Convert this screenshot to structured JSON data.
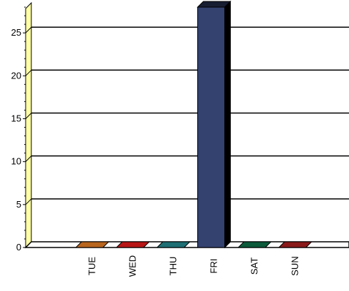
{
  "chart_data": {
    "type": "bar",
    "style": "3d",
    "title": "",
    "xlabel": "",
    "ylabel": "",
    "categories": [
      "",
      "TUE",
      "WED",
      "THU",
      "FRI",
      "SAT",
      "SUN"
    ],
    "series": [
      {
        "values": [
          0,
          0,
          0,
          0,
          28,
          0,
          0
        ],
        "colors": [
          "#ffffff",
          "#b8651e",
          "#b81616",
          "#1d6f74",
          "#33426f",
          "#0b5a3a",
          "#8a1a1a"
        ]
      }
    ],
    "ylim": [
      0,
      28.5
    ],
    "yticks": [
      0,
      5,
      10,
      15,
      20,
      25
    ],
    "ytick_labels": [
      "0",
      "5",
      "10",
      "15",
      "20",
      "25"
    ],
    "grid": true,
    "legend": "none",
    "side_wall_color": "#ffffa8"
  }
}
